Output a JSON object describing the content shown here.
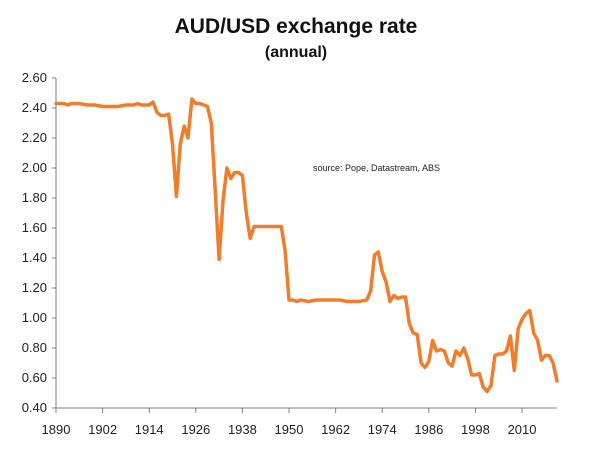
{
  "chart_data": {
    "type": "line",
    "title": "AUD/USD exchange rate",
    "subtitle": "(annual)",
    "annotation": "source:  Pope,  Datastream,  ABS",
    "xlabel": "",
    "ylabel": "",
    "xlim": [
      1890,
      2019
    ],
    "ylim": [
      0.4,
      2.6
    ],
    "x_ticks": [
      1890,
      1902,
      1914,
      1926,
      1938,
      1950,
      1962,
      1974,
      1986,
      1998,
      2010
    ],
    "x_tick_labels": [
      "1890",
      "1902",
      "1914",
      "1926",
      "1938",
      "1950",
      "1962",
      "1974",
      "1986",
      "1998",
      "2010"
    ],
    "y_ticks": [
      0.4,
      0.6,
      0.8,
      1.0,
      1.2,
      1.4,
      1.6,
      1.8,
      2.0,
      2.2,
      2.4,
      2.6
    ],
    "y_tick_labels": [
      "0.40",
      "0.60",
      "0.80",
      "1.00",
      "1.20",
      "1.40",
      "1.60",
      "1.80",
      "2.00",
      "2.20",
      "2.40",
      "2.60"
    ],
    "grid": false,
    "line_color": "#F07D2B",
    "series": [
      {
        "name": "",
        "points": [
          [
            1890,
            2.43
          ],
          [
            1892,
            2.43
          ],
          [
            1893,
            2.42
          ],
          [
            1894,
            2.43
          ],
          [
            1896,
            2.43
          ],
          [
            1898,
            2.42
          ],
          [
            1900,
            2.42
          ],
          [
            1902,
            2.41
          ],
          [
            1904,
            2.41
          ],
          [
            1906,
            2.41
          ],
          [
            1908,
            2.42
          ],
          [
            1910,
            2.42
          ],
          [
            1911,
            2.43
          ],
          [
            1912,
            2.42
          ],
          [
            1913,
            2.42
          ],
          [
            1914,
            2.42
          ],
          [
            1915,
            2.44
          ],
          [
            1916,
            2.37
          ],
          [
            1917,
            2.35
          ],
          [
            1918,
            2.35
          ],
          [
            1919,
            2.36
          ],
          [
            1920,
            2.16
          ],
          [
            1921,
            1.81
          ],
          [
            1922,
            2.16
          ],
          [
            1923,
            2.28
          ],
          [
            1924,
            2.2
          ],
          [
            1925,
            2.46
          ],
          [
            1926,
            2.43
          ],
          [
            1927,
            2.43
          ],
          [
            1928,
            2.42
          ],
          [
            1929,
            2.41
          ],
          [
            1930,
            2.3
          ],
          [
            1931,
            1.85
          ],
          [
            1932,
            1.39
          ],
          [
            1933,
            1.78
          ],
          [
            1934,
            2.0
          ],
          [
            1935,
            1.93
          ],
          [
            1936,
            1.97
          ],
          [
            1937,
            1.97
          ],
          [
            1938,
            1.95
          ],
          [
            1939,
            1.7
          ],
          [
            1940,
            1.53
          ],
          [
            1941,
            1.61
          ],
          [
            1942,
            1.61
          ],
          [
            1944,
            1.61
          ],
          [
            1946,
            1.61
          ],
          [
            1948,
            1.61
          ],
          [
            1949,
            1.45
          ],
          [
            1950,
            1.12
          ],
          [
            1951,
            1.12
          ],
          [
            1952,
            1.11
          ],
          [
            1953,
            1.12
          ],
          [
            1955,
            1.11
          ],
          [
            1957,
            1.12
          ],
          [
            1960,
            1.12
          ],
          [
            1963,
            1.12
          ],
          [
            1965,
            1.11
          ],
          [
            1968,
            1.11
          ],
          [
            1970,
            1.12
          ],
          [
            1971,
            1.18
          ],
          [
            1972,
            1.42
          ],
          [
            1973,
            1.44
          ],
          [
            1974,
            1.31
          ],
          [
            1975,
            1.24
          ],
          [
            1976,
            1.11
          ],
          [
            1977,
            1.15
          ],
          [
            1978,
            1.13
          ],
          [
            1979,
            1.14
          ],
          [
            1980,
            1.14
          ],
          [
            1981,
            0.96
          ],
          [
            1982,
            0.9
          ],
          [
            1983,
            0.89
          ],
          [
            1984,
            0.7
          ],
          [
            1985,
            0.67
          ],
          [
            1986,
            0.71
          ],
          [
            1987,
            0.85
          ],
          [
            1988,
            0.78
          ],
          [
            1989,
            0.79
          ],
          [
            1990,
            0.78
          ],
          [
            1991,
            0.7
          ],
          [
            1992,
            0.68
          ],
          [
            1993,
            0.78
          ],
          [
            1994,
            0.75
          ],
          [
            1995,
            0.8
          ],
          [
            1996,
            0.73
          ],
          [
            1997,
            0.62
          ],
          [
            1998,
            0.62
          ],
          [
            1999,
            0.63
          ],
          [
            2000,
            0.54
          ],
          [
            2001,
            0.51
          ],
          [
            2002,
            0.55
          ],
          [
            2003,
            0.75
          ],
          [
            2004,
            0.76
          ],
          [
            2005,
            0.76
          ],
          [
            2006,
            0.78
          ],
          [
            2007,
            0.88
          ],
          [
            2008,
            0.65
          ],
          [
            2009,
            0.93
          ],
          [
            2010,
            0.99
          ],
          [
            2011,
            1.03
          ],
          [
            2012,
            1.05
          ],
          [
            2013,
            0.9
          ],
          [
            2014,
            0.85
          ],
          [
            2015,
            0.72
          ],
          [
            2016,
            0.75
          ],
          [
            2017,
            0.75
          ],
          [
            2018,
            0.7
          ],
          [
            2019,
            0.58
          ]
        ]
      }
    ]
  }
}
